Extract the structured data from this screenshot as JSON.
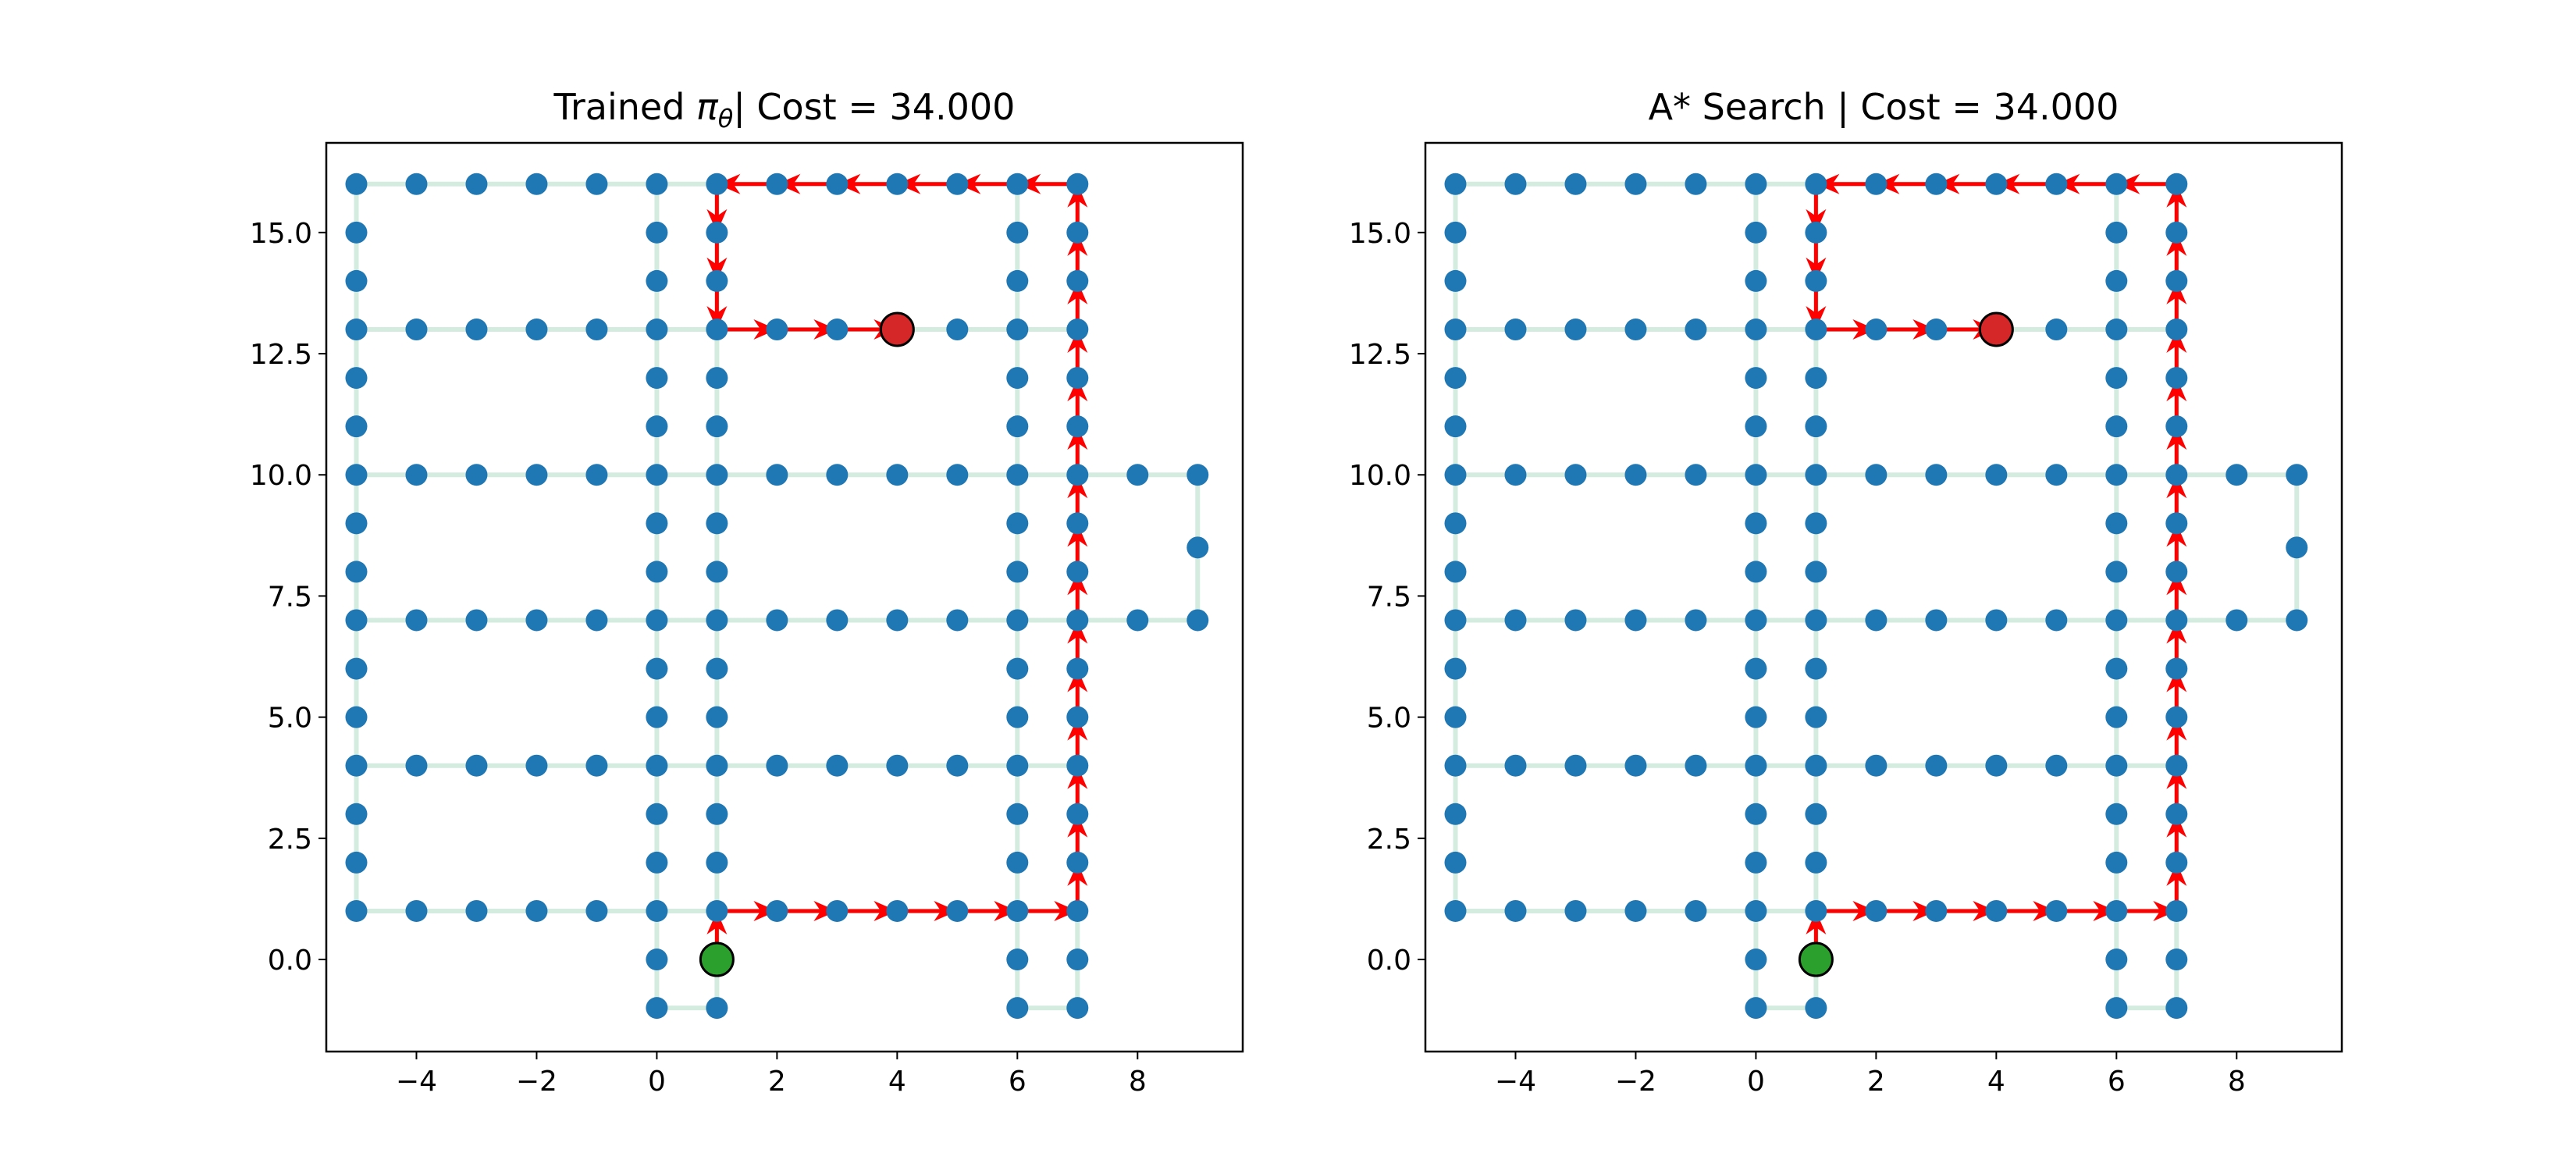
{
  "colors": {
    "node": "#1f77b4",
    "edge": "#d4ebe0",
    "path": "#ff0000",
    "start": "#2ca02c",
    "goal": "#d62728"
  },
  "chart_data": [
    {
      "type": "scatter",
      "title": "Trained πθ| Cost = 34.000",
      "title_parts": {
        "prefix": "Trained ",
        "pi": "π",
        "theta": "θ",
        "suffix": "| Cost = 34.000"
      },
      "xlim": [
        -5.5,
        9.75
      ],
      "ylim": [
        -1.9,
        16.85
      ],
      "x_ticks": [
        -4,
        -2,
        0,
        2,
        4,
        6,
        8
      ],
      "x_tick_labels": [
        "−4",
        "−2",
        "0",
        "2",
        "4",
        "6",
        "8"
      ],
      "y_ticks": [
        0,
        2.5,
        5,
        7.5,
        10,
        12.5,
        15
      ],
      "y_tick_labels": [
        "0.0",
        "2.5",
        "5.0",
        "7.5",
        "10.0",
        "12.5",
        "15.0"
      ],
      "grid": false,
      "start": [
        1,
        0
      ],
      "goal": [
        4,
        13
      ],
      "path": [
        [
          1,
          0
        ],
        [
          1,
          1
        ],
        [
          2,
          1
        ],
        [
          3,
          1
        ],
        [
          4,
          1
        ],
        [
          5,
          1
        ],
        [
          6,
          1
        ],
        [
          7,
          1
        ],
        [
          7,
          2
        ],
        [
          7,
          3
        ],
        [
          7,
          4
        ],
        [
          7,
          5
        ],
        [
          7,
          6
        ],
        [
          7,
          7
        ],
        [
          7,
          8
        ],
        [
          7,
          9
        ],
        [
          7,
          10
        ],
        [
          7,
          11
        ],
        [
          7,
          12
        ],
        [
          7,
          13
        ],
        [
          7,
          14
        ],
        [
          7,
          15
        ],
        [
          7,
          16
        ],
        [
          6,
          16
        ],
        [
          5,
          16
        ],
        [
          4,
          16
        ],
        [
          3,
          16
        ],
        [
          2,
          16
        ],
        [
          1,
          16
        ],
        [
          1,
          15
        ],
        [
          1,
          14
        ],
        [
          1,
          13
        ],
        [
          2,
          13
        ],
        [
          3,
          13
        ],
        [
          4,
          13
        ]
      ]
    },
    {
      "type": "scatter",
      "title": "A* Search | Cost = 34.000",
      "xlim": [
        -5.5,
        9.75
      ],
      "ylim": [
        -1.9,
        16.85
      ],
      "x_ticks": [
        -4,
        -2,
        0,
        2,
        4,
        6,
        8
      ],
      "x_tick_labels": [
        "−4",
        "−2",
        "0",
        "2",
        "4",
        "6",
        "8"
      ],
      "y_ticks": [
        0,
        2.5,
        5,
        7.5,
        10,
        12.5,
        15
      ],
      "y_tick_labels": [
        "0.0",
        "2.5",
        "5.0",
        "7.5",
        "10.0",
        "12.5",
        "15.0"
      ],
      "grid": false,
      "start": [
        1,
        0
      ],
      "goal": [
        4,
        13
      ],
      "path": [
        [
          1,
          0
        ],
        [
          1,
          1
        ],
        [
          2,
          1
        ],
        [
          3,
          1
        ],
        [
          4,
          1
        ],
        [
          5,
          1
        ],
        [
          6,
          1
        ],
        [
          7,
          1
        ],
        [
          7,
          2
        ],
        [
          7,
          3
        ],
        [
          7,
          4
        ],
        [
          7,
          5
        ],
        [
          7,
          6
        ],
        [
          7,
          7
        ],
        [
          7,
          8
        ],
        [
          7,
          9
        ],
        [
          7,
          10
        ],
        [
          7,
          11
        ],
        [
          7,
          12
        ],
        [
          7,
          13
        ],
        [
          7,
          14
        ],
        [
          7,
          15
        ],
        [
          7,
          16
        ],
        [
          6,
          16
        ],
        [
          5,
          16
        ],
        [
          4,
          16
        ],
        [
          3,
          16
        ],
        [
          2,
          16
        ],
        [
          1,
          16
        ],
        [
          1,
          15
        ],
        [
          1,
          14
        ],
        [
          1,
          13
        ],
        [
          2,
          13
        ],
        [
          3,
          13
        ],
        [
          4,
          13
        ]
      ]
    }
  ],
  "graph": {
    "horizontal_rows": [
      {
        "y": 16,
        "x_from": -5,
        "x_to": 7
      },
      {
        "y": 13,
        "x_from": -5,
        "x_to": 7
      },
      {
        "y": 10,
        "x_from": -5,
        "x_to": 9
      },
      {
        "y": 7,
        "x_from": -5,
        "x_to": 9
      },
      {
        "y": 4,
        "x_from": -5,
        "x_to": 7
      },
      {
        "y": 1,
        "x_from": -5,
        "x_to": 7
      },
      {
        "y": -1,
        "x_from": 0,
        "x_to": 1
      },
      {
        "y": -1,
        "x_from": 6,
        "x_to": 7
      }
    ],
    "vertical_cols": [
      {
        "x": -5,
        "y_from": 1,
        "y_to": 16
      },
      {
        "x": 0,
        "y_from": -1,
        "y_to": 16
      },
      {
        "x": 1,
        "y_from": -1,
        "y_to": 16
      },
      {
        "x": 6,
        "y_from": -1,
        "y_to": 16
      },
      {
        "x": 7,
        "y_from": -1,
        "y_to": 16
      }
    ],
    "extra_edges": [
      [
        [
          9,
          10
        ],
        [
          9,
          8.5
        ]
      ],
      [
        [
          9,
          8.5
        ],
        [
          9,
          7
        ]
      ]
    ],
    "extra_nodes": [
      [
        9,
        8.5
      ]
    ]
  }
}
